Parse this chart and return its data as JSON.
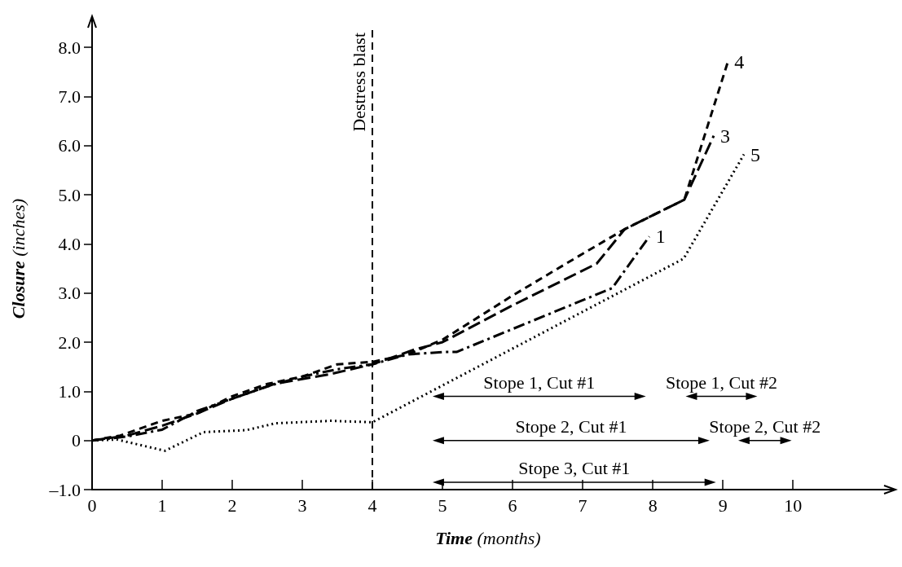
{
  "chart_data": {
    "type": "line",
    "xlabel": "Time (months)",
    "ylabel": "Closure (inches)",
    "xlim": [
      0,
      11.3
    ],
    "ylim": [
      -1,
      8.4
    ],
    "xticks": [
      0,
      1,
      2,
      3,
      4,
      5,
      6,
      7,
      8,
      9,
      10
    ],
    "yticks": [
      {
        "value": -1,
        "label": "–1.0"
      },
      {
        "value": 0,
        "label": "0"
      },
      {
        "value": 1,
        "label": "1.0"
      },
      {
        "value": 2,
        "label": "2.0"
      },
      {
        "value": 3,
        "label": "3.0"
      },
      {
        "value": 4,
        "label": "4.0"
      },
      {
        "value": 5,
        "label": "5.0"
      },
      {
        "value": 6,
        "label": "6.0"
      },
      {
        "value": 7,
        "label": "7.0"
      },
      {
        "value": 8,
        "label": "8.0"
      }
    ],
    "grid": false,
    "legend": false,
    "marker": "none",
    "series": [
      {
        "name": "1",
        "color": "#000000",
        "line_style": "dashed",
        "x": [
          0,
          0.5,
          1,
          1.5,
          2,
          2.5,
          3,
          3.5,
          4,
          4.5,
          5,
          5.2,
          7.42,
          7.95
        ],
        "values": [
          0,
          0.08,
          0.22,
          0.6,
          0.85,
          1.1,
          1.3,
          1.45,
          1.55,
          1.75,
          1.8,
          1.8,
          3.1,
          4.15
        ]
      },
      {
        "name": "3",
        "color": "#000000",
        "line_style": "dashed",
        "x": [
          0,
          0.5,
          1,
          1.5,
          2,
          2.6,
          3.4,
          4,
          4.6,
          5,
          6,
          7.2,
          7.6,
          8.45,
          8.87
        ],
        "values": [
          0,
          0.1,
          0.3,
          0.55,
          0.85,
          1.15,
          1.35,
          1.55,
          1.85,
          2.0,
          2.75,
          3.6,
          4.3,
          4.9,
          6.2
        ]
      },
      {
        "name": "4",
        "color": "#000000",
        "line_style": "dashed",
        "x": [
          0,
          0.4,
          1,
          1.5,
          2,
          2.5,
          3,
          3.5,
          4,
          4.5,
          5,
          6,
          7,
          7.6,
          8.45,
          9.07
        ],
        "values": [
          0,
          0.1,
          0.4,
          0.55,
          0.9,
          1.15,
          1.3,
          1.55,
          1.6,
          1.75,
          2.05,
          2.95,
          3.8,
          4.3,
          4.9,
          7.7
        ]
      },
      {
        "name": "5",
        "color": "#000000",
        "line_style": "dotted",
        "x": [
          0,
          0.35,
          1.04,
          1.59,
          2.2,
          2.62,
          3.41,
          4,
          8.44,
          9.3
        ],
        "values": [
          0,
          0.02,
          -0.21,
          0.17,
          0.21,
          0.35,
          0.4,
          0.37,
          3.7,
          5.82
        ]
      },
      {
        "name": "Stope 1, Cut #1",
        "color": "#000000",
        "line_style": "solid",
        "marker": "triangle",
        "x": [
          4.94,
          7.82
        ],
        "values": [
          0.9,
          0.9
        ]
      },
      {
        "name": "Stope 1, Cut #2",
        "color": "#000000",
        "line_style": "solid",
        "marker": "triangle",
        "x": [
          8.55,
          9.41
        ],
        "values": [
          0.9,
          0.9
        ]
      },
      {
        "name": "Stope 2, Cut #1",
        "color": "#000000",
        "line_style": "solid",
        "marker": "triangle",
        "x": [
          4.94,
          8.73
        ],
        "values": [
          0,
          0
        ]
      },
      {
        "name": "Stope 2, Cut #2",
        "color": "#000000",
        "line_style": "solid",
        "marker": "triangle",
        "x": [
          9.3,
          9.9
        ],
        "values": [
          0,
          0
        ]
      },
      {
        "name": "Stope 3, Cut #1",
        "color": "#000000",
        "line_style": "solid",
        "marker": "triangle",
        "x": [
          4.94,
          8.82
        ],
        "values": [
          -0.85,
          -0.85
        ]
      }
    ],
    "ref_lines": [
      {
        "axis": "x",
        "value": 4,
        "label": "Destress blast",
        "color": "#000000",
        "line_style": "dashed"
      }
    ]
  }
}
